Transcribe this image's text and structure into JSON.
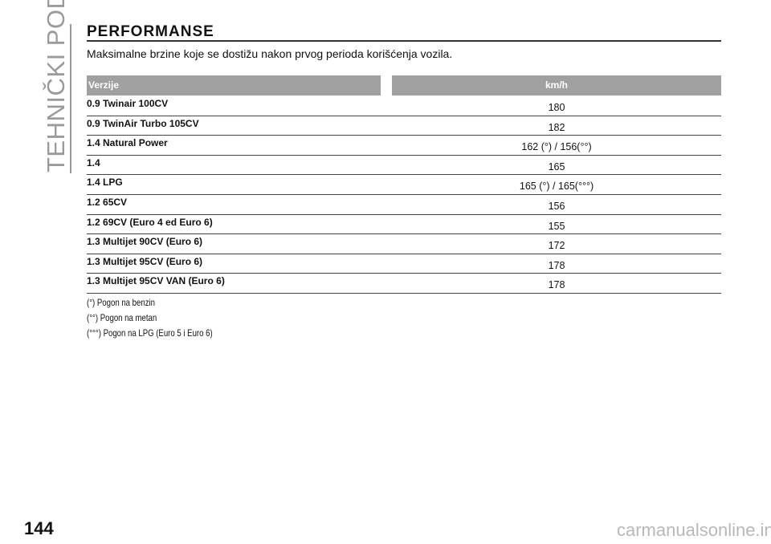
{
  "side_label": "TEHNIČKI PODACI",
  "header": {
    "title": "PERFORMANSE",
    "subtitle": "Maksimalne brzine koje se dostižu nakon prvog perioda korišćenja vozila."
  },
  "table": {
    "headers": [
      "Verzije",
      "km/h"
    ],
    "rows": [
      [
        "0.9 Twinair 100CV",
        180
      ],
      [
        "0.9 TwinAir Turbo 105CV",
        182
      ],
      [
        "1.4 Natural Power",
        "162 (°) / 156(°°)"
      ],
      [
        "1.4",
        165
      ],
      [
        "1.4 LPG",
        "165 (°) / 165(°°°)"
      ],
      [
        "1.2 65CV",
        156
      ],
      [
        "1.2 69CV (Euro 4 ed Euro 6)",
        155
      ],
      [
        "1.3 Multijet 90CV (Euro 6)",
        172
      ],
      [
        "1.3 Multijet 95CV (Euro 6)",
        178
      ],
      [
        "1.3 Multijet 95CV VAN (Euro 6)",
        178
      ]
    ]
  },
  "footnotes": [
    "(°) Pogon na benzin",
    "(°°) Pogon na metan",
    "(°°°) Pogon na LPG (Euro 5 i Euro 6)"
  ],
  "page_number": 144,
  "watermark": "carmanualsonline.info"
}
